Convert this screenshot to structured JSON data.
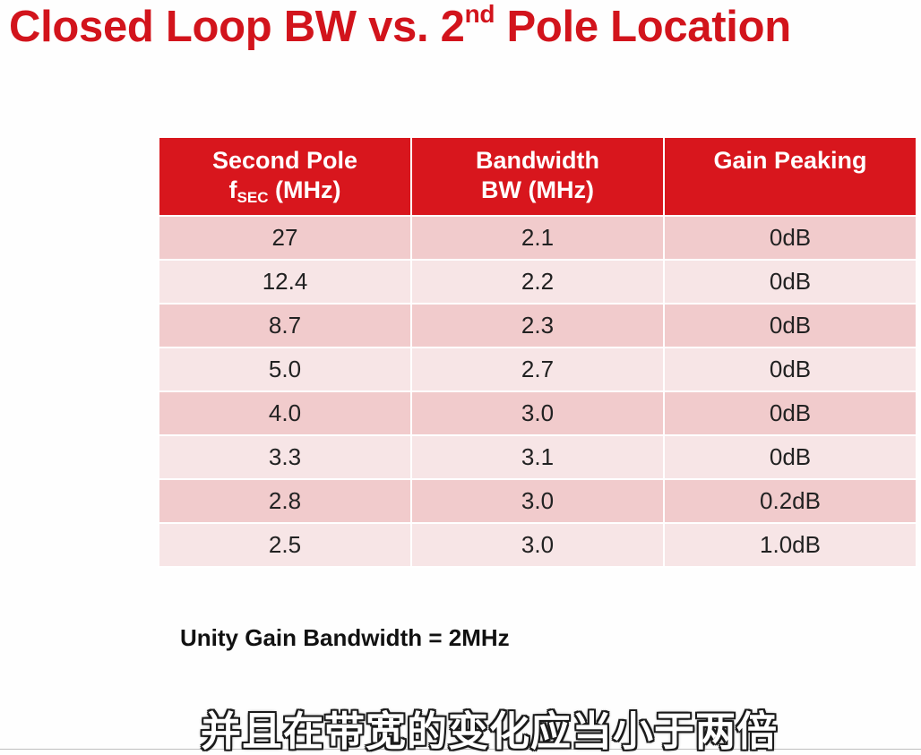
{
  "slide": {
    "title_main": "Closed Loop BW vs. 2",
    "title_sup": "nd",
    "title_tail": " Pole Location",
    "accent_color": "#d8161d"
  },
  "table": {
    "headers": [
      {
        "line1": "Second Pole",
        "line2_main": "f",
        "line2_sub": "SEC",
        "line2_tail": " (MHz)"
      },
      {
        "line1": "Bandwidth",
        "line2_main": "BW (MHz)",
        "line2_sub": "",
        "line2_tail": ""
      },
      {
        "line1": "Gain Peaking",
        "line2_main": "",
        "line2_sub": "",
        "line2_tail": ""
      }
    ],
    "rows": [
      [
        "27",
        "2.1",
        "0dB"
      ],
      [
        "12.4",
        "2.2",
        "0dB"
      ],
      [
        "8.7",
        "2.3",
        "0dB"
      ],
      [
        "5.0",
        "2.7",
        "0dB"
      ],
      [
        "4.0",
        "3.0",
        "0dB"
      ],
      [
        "3.3",
        "3.1",
        "0dB"
      ],
      [
        "2.8",
        "3.0",
        "0.2dB"
      ],
      [
        "2.5",
        "3.0",
        "1.0dB"
      ]
    ]
  },
  "note": "Unity Gain Bandwidth = 2MHz",
  "caption": "并且在带宽的变化应当小于两倍"
}
